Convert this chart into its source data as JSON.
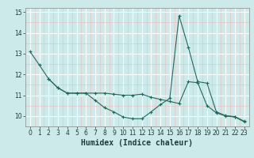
{
  "line1_x": [
    0,
    1,
    2,
    3,
    4,
    5,
    6,
    7,
    8,
    9,
    10,
    11,
    12,
    13,
    14,
    15,
    16,
    17,
    18,
    19,
    20,
    21,
    22,
    23
  ],
  "line1_y": [
    13.1,
    12.45,
    11.78,
    11.35,
    11.1,
    11.1,
    11.1,
    10.75,
    10.4,
    10.2,
    9.95,
    9.87,
    9.87,
    10.2,
    10.55,
    10.85,
    14.82,
    13.3,
    11.65,
    11.58,
    10.2,
    10.02,
    9.97,
    9.75
  ],
  "line2_x": [
    2,
    3,
    4,
    5,
    6,
    7,
    8,
    9,
    10,
    11,
    12,
    13,
    14,
    15,
    16,
    17,
    18,
    19,
    20,
    21,
    22,
    23
  ],
  "line2_y": [
    11.78,
    11.35,
    11.1,
    11.1,
    11.1,
    11.1,
    11.1,
    11.05,
    11.0,
    11.0,
    11.05,
    10.9,
    10.8,
    10.7,
    10.6,
    11.65,
    11.6,
    10.5,
    10.15,
    10.0,
    9.95,
    9.72
  ],
  "color": "#1e6b5e",
  "bg_color": "#cdeaea",
  "grid_major_color": "#ffffff",
  "grid_minor_color": "#e0f5f5",
  "xlabel": "Humidex (Indice chaleur)",
  "xlim": [
    -0.5,
    23.5
  ],
  "ylim": [
    9.5,
    15.2
  ],
  "yticks": [
    10,
    11,
    12,
    13,
    14,
    15
  ],
  "xticks": [
    0,
    1,
    2,
    3,
    4,
    5,
    6,
    7,
    8,
    9,
    10,
    11,
    12,
    13,
    14,
    15,
    16,
    17,
    18,
    19,
    20,
    21,
    22,
    23
  ],
  "tick_fontsize": 5.5,
  "xlabel_fontsize": 7.0,
  "linewidth": 0.8,
  "markersize": 3.0
}
